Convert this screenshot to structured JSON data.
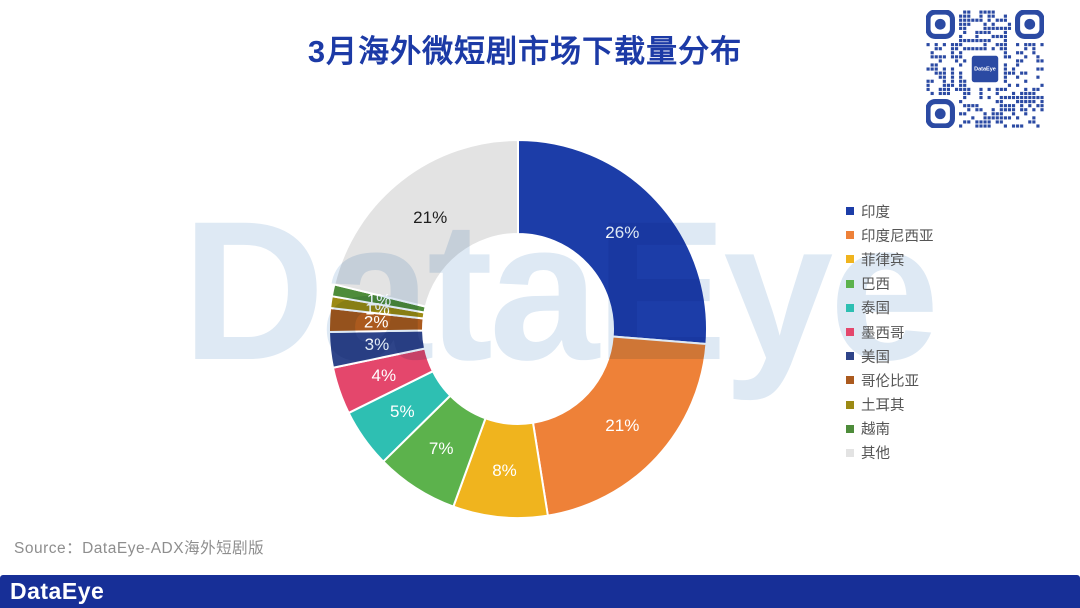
{
  "header": {
    "title": "3月海外微短剧市场下载量分布"
  },
  "watermark": {
    "text": "DataEye"
  },
  "qr": {
    "label": "DataEye",
    "color": "#2B4AA3"
  },
  "footer": {
    "source": "Source：DataEye-ADX海外短剧版",
    "logo": "DataEye"
  },
  "colors": {
    "title": "#1C3AA6",
    "watermark": "#DEE9F4",
    "legend_text": "#555555",
    "source_text": "#8E8E8E",
    "footer_bg": "#172F97",
    "slice_border": "#FFFFFF"
  },
  "chart_data": {
    "type": "pie",
    "subtype": "donut",
    "title": "3月海外微短剧市场下载量分布",
    "unit": "percent",
    "legend_position": "right",
    "start_angle_deg": 0,
    "direction": "clockwise",
    "labels_shown": "inside-ring",
    "slices": [
      {
        "name": "印度",
        "value": 26,
        "label": "26%",
        "color": "#1C3DA8",
        "label_color": "#FFFFFF"
      },
      {
        "name": "印度尼西亚",
        "value": 21,
        "label": "21%",
        "color": "#EE8138",
        "label_color": "#FFFFFF"
      },
      {
        "name": "菲律宾",
        "value": 8,
        "label": "8%",
        "color": "#F0B41E",
        "label_color": "#FFFFFF"
      },
      {
        "name": "巴西",
        "value": 7,
        "label": "7%",
        "color": "#5CB24C",
        "label_color": "#FFFFFF"
      },
      {
        "name": "泰国",
        "value": 5,
        "label": "5%",
        "color": "#2EBFB2",
        "label_color": "#FFFFFF"
      },
      {
        "name": "墨西哥",
        "value": 4,
        "label": "4%",
        "color": "#E4476C",
        "label_color": "#FFFFFF"
      },
      {
        "name": "美国",
        "value": 3,
        "label": "3%",
        "color": "#2E4489",
        "label_color": "#FFFFFF"
      },
      {
        "name": "哥伦比亚",
        "value": 2,
        "label": "2%",
        "color": "#AB5A1E",
        "label_color": "#FFFFFF"
      },
      {
        "name": "土耳其",
        "value": 1,
        "label": "1%",
        "color": "#9C8A14",
        "label_color": "#FFFFFF"
      },
      {
        "name": "越南",
        "value": 1,
        "label": "1%",
        "color": "#4E8C3A",
        "label_color": "#FFFFFF"
      },
      {
        "name": "其他",
        "value": 21,
        "label": "21%",
        "color": "#E3E3E3",
        "label_color": "#1E1E1E"
      }
    ]
  }
}
